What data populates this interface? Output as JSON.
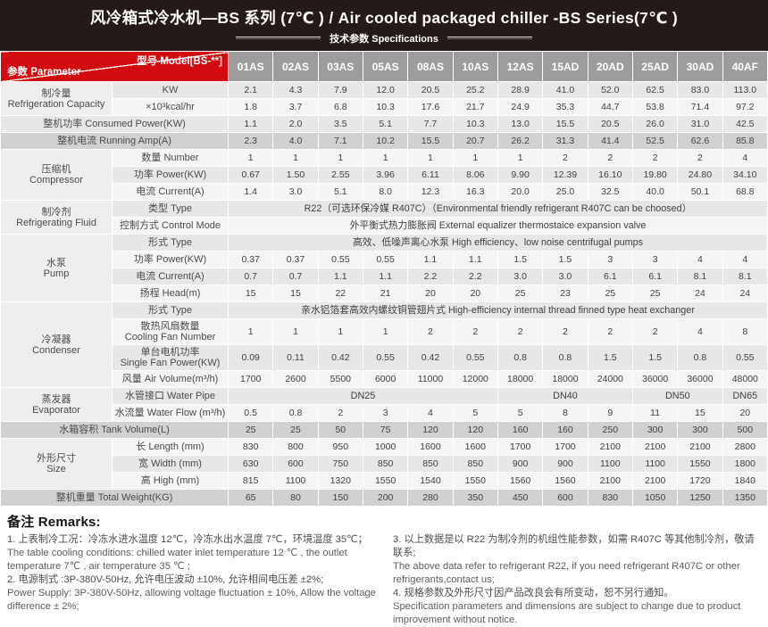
{
  "title": "风冷箱式冷水机—BS 系列 (7℃ ) / Air cooled packaged chiller -BS Series(7℃ )",
  "subtitle": "技术参数 Specifications",
  "table": {
    "corner": {
      "param": "参数 Parameter",
      "model": "型号 Model[BS-**]"
    },
    "models": [
      "01AS",
      "02AS",
      "03AS",
      "05AS",
      "08AS",
      "10AS",
      "12AS",
      "15AD",
      "20AD",
      "25AD",
      "30AD",
      "40AF"
    ],
    "rows": [
      {
        "name": "refrigeration-kw",
        "group": {
          "name": "refrigeration-capacity",
          "lines": [
            "制冷量",
            "Refrigeration Capacity"
          ],
          "span": 2
        },
        "label": [
          "KW"
        ],
        "shade": "light",
        "values": [
          "2.1",
          "4.3",
          "7.9",
          "12.0",
          "20.5",
          "25.2",
          "28.9",
          "41.0",
          "52.0",
          "62.5",
          "83.0",
          "113.0"
        ]
      },
      {
        "name": "refrigeration-kcal",
        "label": [
          "×10³kcal/hr"
        ],
        "shade": "white",
        "values": [
          "1.8",
          "3.7",
          "6.8",
          "10.3",
          "17.6",
          "21.7",
          "24.9",
          "35.3",
          "44.7",
          "53.8",
          "71.4",
          "97.2"
        ]
      },
      {
        "name": "consumed-power",
        "full_label": true,
        "label": [
          "整机功率 Consumed Power(KW)"
        ],
        "shade": "light",
        "values": [
          "1.1",
          "2.0",
          "3.5",
          "5.1",
          "7.7",
          "10.3",
          "13.0",
          "15.5",
          "20.5",
          "26.0",
          "31.0",
          "42.5"
        ]
      },
      {
        "name": "running-amp",
        "full_label": true,
        "label": [
          "整机电流 Running Amp(A)"
        ],
        "shade": "dark",
        "values": [
          "2.3",
          "4.0",
          "7.1",
          "10.2",
          "15.5",
          "20.7",
          "26.2",
          "31.3",
          "41.4",
          "52.5",
          "62.6",
          "85.8"
        ]
      },
      {
        "name": "compressor-number",
        "group": {
          "name": "compressor",
          "lines": [
            "压缩机",
            "Compressor"
          ],
          "span": 3
        },
        "label": [
          "数量 Number"
        ],
        "shade": "white",
        "values": [
          "1",
          "1",
          "1",
          "1",
          "1",
          "1",
          "1",
          "2",
          "2",
          "2",
          "2",
          "4"
        ]
      },
      {
        "name": "compressor-power",
        "label": [
          "功率 Power(KW)"
        ],
        "shade": "light",
        "values": [
          "0.67",
          "1.50",
          "2.55",
          "3.96",
          "6.11",
          "8.06",
          "9.90",
          "12.39",
          "16.10",
          "19.80",
          "24.80",
          "34.10"
        ]
      },
      {
        "name": "compressor-current",
        "label": [
          "电流 Current(A)"
        ],
        "shade": "white",
        "values": [
          "1.4",
          "3.0",
          "5.1",
          "8.0",
          "12.3",
          "16.3",
          "20.0",
          "25.0",
          "32.5",
          "40.0",
          "50.1",
          "68.8"
        ]
      },
      {
        "name": "refrigerant-type",
        "group": {
          "name": "refrigerating-fluid",
          "lines": [
            "制冷剂",
            "Refrigerating Fluid"
          ],
          "span": 2
        },
        "label": [
          "类型 Type"
        ],
        "shade": "light",
        "spans": [
          {
            "text": "R22（可选环保冷媒 R407C）（Environmental friendly refrigerant R407C can be choosed）",
            "cols": 12
          }
        ]
      },
      {
        "name": "refrigerant-control-mode",
        "label": [
          "控制方式 Control Mode"
        ],
        "shade": "white",
        "spans": [
          {
            "text": "外平衡式热力膨胀阀 External equalizer thermostaice expansion valve",
            "cols": 12
          }
        ]
      },
      {
        "name": "pump-type",
        "group": {
          "name": "pump",
          "lines": [
            "水泵",
            "Pump"
          ],
          "span": 4
        },
        "label": [
          "形式 Type"
        ],
        "shade": "light",
        "spans": [
          {
            "text": "高效、低噪声离心水泵 High efficiency、low noise centrifugal pumps",
            "cols": 12
          }
        ]
      },
      {
        "name": "pump-power",
        "label": [
          "功率 Power(KW)"
        ],
        "shade": "white",
        "values": [
          "0.37",
          "0.37",
          "0.55",
          "0.55",
          "1.1",
          "1.1",
          "1.5",
          "1.5",
          "3",
          "3",
          "4",
          "4"
        ]
      },
      {
        "name": "pump-current",
        "label": [
          "电流 Current(A)"
        ],
        "shade": "light",
        "values": [
          "0.7",
          "0.7",
          "1.1",
          "1.1",
          "2.2",
          "2.2",
          "3.0",
          "3.0",
          "6.1",
          "6.1",
          "8.1",
          "8.1"
        ]
      },
      {
        "name": "pump-head",
        "label": [
          "扬程 Head(m)"
        ],
        "shade": "white",
        "values": [
          "15",
          "15",
          "22",
          "21",
          "20",
          "20",
          "25",
          "23",
          "25",
          "25",
          "24",
          "24"
        ]
      },
      {
        "name": "condenser-type",
        "group": {
          "name": "condenser",
          "lines": [
            "冷凝器",
            "Condenser"
          ],
          "span": 4
        },
        "label": [
          "形式 Type"
        ],
        "shade": "light",
        "spans": [
          {
            "text": "亲水铝箔套高效内螺纹铜管翅片式 High-efficiency internal thread finned type heat exchanger",
            "cols": 12
          }
        ]
      },
      {
        "name": "cooling-fan-number",
        "label": [
          "散热风扇数量",
          "Cooling Fan Number"
        ],
        "shade": "white",
        "tall": true,
        "values": [
          "1",
          "1",
          "1",
          "1",
          "2",
          "2",
          "2",
          "2",
          "2",
          "2",
          "4",
          "8"
        ]
      },
      {
        "name": "single-fan-power",
        "label": [
          "单台电机功率",
          "Single Fan Power(KW)"
        ],
        "shade": "light",
        "tall": true,
        "values": [
          "0.09",
          "0.11",
          "0.42",
          "0.55",
          "0.42",
          "0.55",
          "0.8",
          "0.8",
          "1.5",
          "1.5",
          "0.8",
          "0.55"
        ]
      },
      {
        "name": "air-volume",
        "label": [
          "风量 Air Volume(m³/h)"
        ],
        "shade": "white",
        "values": [
          "1700",
          "2600",
          "5500",
          "6000",
          "11000",
          "12000",
          "18000",
          "18000",
          "24000",
          "36000",
          "36000",
          "48000"
        ]
      },
      {
        "name": "water-pipe",
        "group": {
          "name": "evaporator",
          "lines": [
            "蒸发器",
            "Evaporator"
          ],
          "span": 2
        },
        "label": [
          "水管接口 Water Pipe"
        ],
        "shade": "light",
        "spans": [
          {
            "text": "DN25",
            "cols": 6
          },
          {
            "text": "DN40",
            "cols": 3
          },
          {
            "text": "DN50",
            "cols": 2
          },
          {
            "text": "DN65",
            "cols": 1
          }
        ]
      },
      {
        "name": "water-flow",
        "label": [
          "水流量 Water Flow (m³/h)"
        ],
        "shade": "white",
        "values": [
          "0.5",
          "0.8",
          "2",
          "3",
          "4",
          "5",
          "5",
          "8",
          "9",
          "11",
          "15",
          "20"
        ]
      },
      {
        "name": "tank-volume",
        "full_label": true,
        "label": [
          "水箱容积 Tank Volume(L)"
        ],
        "shade": "dark",
        "values": [
          "25",
          "25",
          "50",
          "75",
          "120",
          "120",
          "160",
          "160",
          "250",
          "300",
          "300",
          "500"
        ]
      },
      {
        "name": "size-length",
        "group": {
          "name": "size",
          "lines": [
            "外形尺寸",
            "Size"
          ],
          "span": 3
        },
        "label": [
          "长 Length (mm)"
        ],
        "shade": "white",
        "values": [
          "830",
          "800",
          "950",
          "1000",
          "1600",
          "1600",
          "1700",
          "1700",
          "2100",
          "2100",
          "2100",
          "2800"
        ]
      },
      {
        "name": "size-width",
        "label": [
          "宽 Width (mm)"
        ],
        "shade": "light",
        "values": [
          "630",
          "600",
          "750",
          "850",
          "850",
          "850",
          "900",
          "900",
          "1100",
          "1100",
          "1550",
          "1800"
        ]
      },
      {
        "name": "size-high",
        "label": [
          "高 High (mm)"
        ],
        "shade": "white",
        "values": [
          "815",
          "1100",
          "1320",
          "1550",
          "1540",
          "1550",
          "1560",
          "1560",
          "2100",
          "2100",
          "1720",
          "1840"
        ]
      },
      {
        "name": "total-weight",
        "full_label": true,
        "label": [
          "整机重量 Total Weight(KG)"
        ],
        "shade": "dark",
        "values": [
          "65",
          "80",
          "150",
          "200",
          "280",
          "350",
          "450",
          "600",
          "830",
          "1050",
          "1250",
          "1350"
        ]
      }
    ]
  },
  "remarks": {
    "heading": "备注 Remarks:",
    "left": [
      {
        "zh": "1. 上表制冷工况：冷冻水进水温度 12℃，冷冻水出水温度 7℃，环境温度 35℃；",
        "en": "The table cooling conditions: chilled water inlet temperature 12 ℃ , the outlet temperature 7℃ , air temperature 35 ℃ ;"
      },
      {
        "zh": "2. 电源制式 :3P-380V-50Hz, 允许电压波动 ±10%, 允许相间电压差 ±2%;",
        "en": "Power Supply: 3P-380V-50Hz, allowing voltage fluctuation ± 10%, Allow the voltage difference ± 2%;"
      }
    ],
    "right": [
      {
        "zh": "3. 以上数据是以 R22 为制冷剂的机组性能参数，如需 R407C 等其他制冷剂，敬请联系;",
        "en": "The above data refer to refrigerant R22, if you need refrigerant R407C or other refrigerants,contact us;"
      },
      {
        "zh": "4. 规格参数及外形尺寸因产品改良会有所变动，恕不另行通知。",
        "en": "Specification parameters and dimensions are subject to change due to product improvement without notice."
      }
    ]
  },
  "colors": {
    "title_bar": "#241b18",
    "accent_red": "#d20b10",
    "header_gray": "#9e9c9c",
    "row_white": "#f6f5f3",
    "row_light": "#e8e7e5",
    "row_dark": "#d2d1cf"
  }
}
